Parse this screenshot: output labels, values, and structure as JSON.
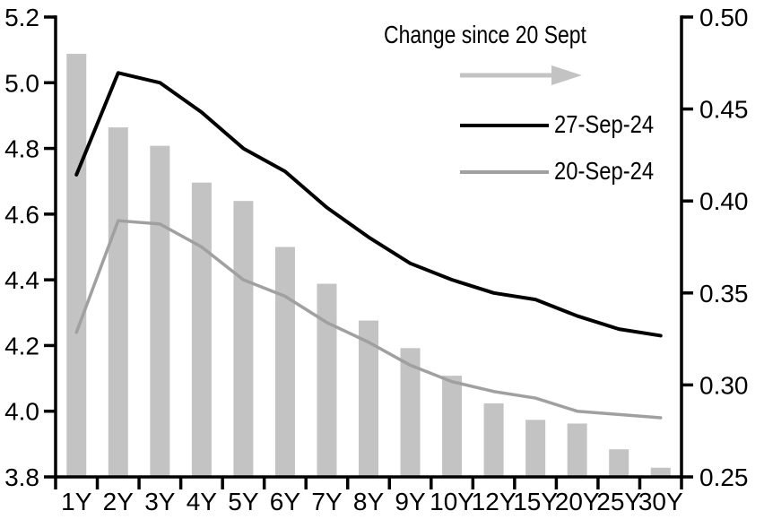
{
  "chart_data": {
    "type": "combo",
    "categories": [
      "1Y",
      "2Y",
      "3Y",
      "4Y",
      "5Y",
      "6Y",
      "7Y",
      "8Y",
      "9Y",
      "10Y",
      "12Y",
      "15Y",
      "20Y",
      "25Y",
      "30Y"
    ],
    "series": [
      {
        "name": "Change since 20 Sept",
        "type": "bar",
        "axis": "right",
        "color": "#c3c3c3",
        "values": [
          0.48,
          0.44,
          0.43,
          0.41,
          0.4,
          0.375,
          0.355,
          0.335,
          0.32,
          0.305,
          0.29,
          0.281,
          0.279,
          0.265,
          0.255
        ]
      },
      {
        "name": "27-Sep-24",
        "type": "line",
        "axis": "left",
        "color": "#000000",
        "stroke_width": 4,
        "values": [
          4.72,
          5.03,
          5.0,
          4.91,
          4.8,
          4.73,
          4.62,
          4.53,
          4.45,
          4.4,
          4.36,
          4.34,
          4.29,
          4.25,
          4.23
        ]
      },
      {
        "name": "20-Sep-24",
        "type": "line",
        "axis": "left",
        "color": "#a0a0a0",
        "stroke_width": 3.5,
        "values": [
          4.24,
          4.58,
          4.57,
          4.5,
          4.4,
          4.35,
          4.27,
          4.21,
          4.14,
          4.09,
          4.06,
          4.04,
          4.0,
          3.99,
          3.98
        ]
      }
    ],
    "left_axis": {
      "min": 3.8,
      "max": 5.2,
      "step": 0.2,
      "tick_labels": [
        "3.8",
        "4.0",
        "4.2",
        "4.4",
        "4.6",
        "4.8",
        "5.0",
        "5.2"
      ]
    },
    "right_axis": {
      "min": 0.25,
      "max": 0.5,
      "step": 0.05,
      "tick_labels": [
        "0.25",
        "0.30",
        "0.35",
        "0.40",
        "0.45",
        "0.50"
      ]
    },
    "grid": false,
    "legend_position": "top-right-inside",
    "legend": {
      "title": "Change since 20 Sept",
      "arrow_color": "#c3c3c3",
      "items": [
        {
          "label": "27-Sep-24",
          "color": "#000000"
        },
        {
          "label": "20-Sep-24",
          "color": "#a0a0a0"
        }
      ]
    }
  }
}
